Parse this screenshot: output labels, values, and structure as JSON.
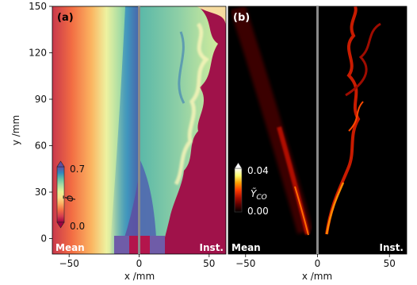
{
  "chart_data": [
    {
      "type": "heatmap",
      "panel_label": "(a)",
      "ylabel": "y /mm",
      "xlabel": "x /mm",
      "xlim": [
        -62,
        62
      ],
      "ylim": [
        -10,
        150
      ],
      "x_ticks": [
        -50,
        0,
        50
      ],
      "y_ticks": [
        0,
        30,
        60,
        90,
        120,
        150
      ],
      "x_tick_labels": [
        "−50",
        "0",
        "50"
      ],
      "y_tick_labels": [
        "0",
        "30",
        "60",
        "90",
        "120",
        "150"
      ],
      "left_half_label": "Mean",
      "right_half_label": "Inst.",
      "colorbar": {
        "symbol": "ϕ̄",
        "min_label": "0.0",
        "max_label": "0.7",
        "min": 0.0,
        "max": 0.7,
        "colors": [
          "#9e0142",
          "#d53e4f",
          "#f46d43",
          "#fdae61",
          "#fee08b",
          "#e6f598",
          "#abdda4",
          "#66c2a5",
          "#3288bd",
          "#5e4fa2"
        ]
      }
    },
    {
      "type": "heatmap",
      "panel_label": "(b)",
      "xlabel": "x /mm",
      "xlim": [
        -62,
        62
      ],
      "ylim": [
        -10,
        150
      ],
      "x_ticks": [
        -50,
        0,
        50
      ],
      "x_tick_labels": [
        "−50",
        "0",
        "50"
      ],
      "left_half_label": "Mean",
      "right_half_label": "Inst.",
      "colorbar": {
        "symbol": "Ỹ",
        "subscript": "CO",
        "min_label": "0.00",
        "max_label": "0.04",
        "min": 0.0,
        "max": 0.04,
        "colors": [
          "#000000",
          "#5a0000",
          "#b01000",
          "#ff3c00",
          "#ffa000",
          "#ffff70",
          "#ffffff"
        ]
      }
    }
  ]
}
